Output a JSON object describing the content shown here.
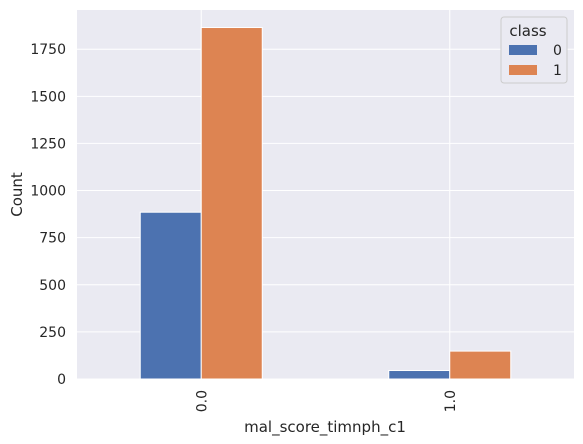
{
  "chart_data": {
    "type": "bar",
    "categories": [
      "0.0",
      "1.0"
    ],
    "series": [
      {
        "name": "0",
        "values": [
          885,
          45
        ],
        "color": "#4c72b0"
      },
      {
        "name": "1",
        "values": [
          1865,
          148
        ],
        "color": "#dd8452"
      }
    ],
    "xlabel": "mal_score_timnph_c1",
    "ylabel": "Count",
    "ylim": [
      0,
      1958
    ],
    "yticks": [
      0,
      250,
      500,
      750,
      1000,
      1250,
      1500,
      1750
    ],
    "grid": true,
    "background_color": "#eaeaf2",
    "grid_color": "#ffffff",
    "legend": {
      "title": "class",
      "placement": "top-right"
    }
  }
}
